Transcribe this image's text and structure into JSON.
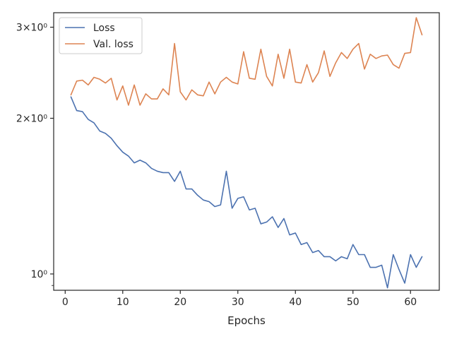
{
  "chart_data": {
    "type": "line",
    "title": "",
    "xlabel": "Epochs",
    "ylabel": "",
    "yscale": "log",
    "xlim": [
      -2,
      65
    ],
    "ylim": [
      0.93,
      3.2
    ],
    "grid": false,
    "legend_position": "top-left",
    "x_ticks": [
      0,
      10,
      20,
      30,
      40,
      50,
      60
    ],
    "x_tick_labels": [
      "0",
      "10",
      "20",
      "30",
      "40",
      "50",
      "60"
    ],
    "y_ticks": [
      1,
      2,
      3
    ],
    "y_tick_labels": [
      "10⁰",
      "2×10⁰",
      "3×10⁰"
    ],
    "series": [
      {
        "name": "Loss",
        "color": "#4c72b0",
        "x": [
          1,
          2,
          3,
          4,
          5,
          6,
          7,
          8,
          9,
          10,
          11,
          12,
          13,
          14,
          15,
          16,
          17,
          18,
          19,
          20,
          21,
          22,
          23,
          24,
          25,
          26,
          27,
          28,
          29,
          30,
          31,
          32,
          33,
          34,
          35,
          36,
          37,
          38,
          39,
          40,
          41,
          42,
          43,
          44,
          45,
          46,
          47,
          48,
          49,
          50,
          51,
          52,
          53,
          54,
          55,
          56,
          57,
          58,
          59,
          60,
          61,
          62
        ],
        "values": [
          2.2,
          2.07,
          2.06,
          1.99,
          1.96,
          1.89,
          1.87,
          1.83,
          1.77,
          1.72,
          1.69,
          1.64,
          1.66,
          1.64,
          1.6,
          1.58,
          1.57,
          1.57,
          1.51,
          1.58,
          1.46,
          1.46,
          1.42,
          1.39,
          1.38,
          1.35,
          1.36,
          1.58,
          1.34,
          1.4,
          1.41,
          1.33,
          1.34,
          1.25,
          1.26,
          1.29,
          1.23,
          1.28,
          1.19,
          1.2,
          1.14,
          1.15,
          1.1,
          1.11,
          1.08,
          1.08,
          1.06,
          1.08,
          1.07,
          1.14,
          1.09,
          1.09,
          1.03,
          1.03,
          1.04,
          0.94,
          1.09,
          1.02,
          0.96,
          1.09,
          1.03,
          1.08
        ]
      },
      {
        "name": "Val. loss",
        "color": "#dd8452",
        "x": [
          1,
          2,
          3,
          4,
          5,
          6,
          7,
          8,
          9,
          10,
          11,
          12,
          13,
          14,
          15,
          16,
          17,
          18,
          19,
          20,
          21,
          22,
          23,
          24,
          25,
          26,
          27,
          28,
          29,
          30,
          31,
          32,
          33,
          34,
          35,
          36,
          37,
          38,
          39,
          40,
          41,
          42,
          43,
          44,
          45,
          46,
          47,
          48,
          49,
          50,
          51,
          52,
          53,
          54,
          55,
          56,
          57,
          58,
          59,
          60,
          61,
          62
        ],
        "values": [
          2.22,
          2.36,
          2.37,
          2.32,
          2.4,
          2.38,
          2.34,
          2.39,
          2.17,
          2.31,
          2.12,
          2.32,
          2.12,
          2.23,
          2.18,
          2.18,
          2.28,
          2.22,
          2.79,
          2.25,
          2.17,
          2.27,
          2.22,
          2.21,
          2.35,
          2.23,
          2.35,
          2.4,
          2.35,
          2.33,
          2.69,
          2.39,
          2.38,
          2.72,
          2.41,
          2.31,
          2.66,
          2.39,
          2.72,
          2.35,
          2.34,
          2.54,
          2.35,
          2.45,
          2.7,
          2.41,
          2.56,
          2.68,
          2.61,
          2.72,
          2.79,
          2.49,
          2.66,
          2.61,
          2.64,
          2.65,
          2.54,
          2.5,
          2.67,
          2.68,
          3.13,
          2.9
        ]
      }
    ]
  }
}
